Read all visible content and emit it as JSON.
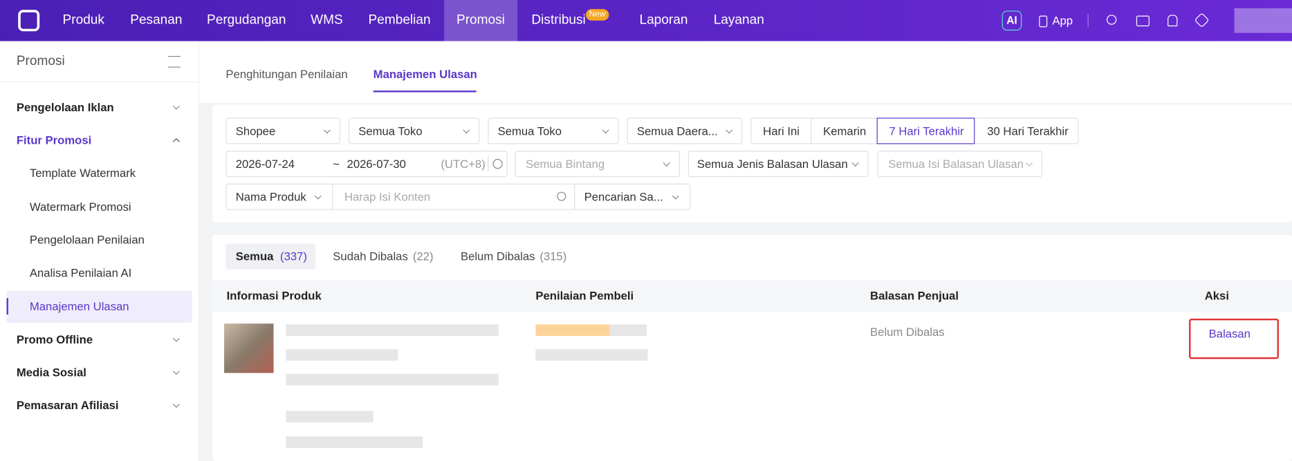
{
  "nav": {
    "items": [
      "Produk",
      "Pesanan",
      "Pergudangan",
      "WMS",
      "Pembelian",
      "Promosi",
      "Distribusi",
      "Laporan",
      "Layanan"
    ],
    "badge": "New",
    "ai": "AI",
    "app": "App"
  },
  "sidebar": {
    "title": "Promosi",
    "items": [
      "Pengelolaan Iklan",
      "Fitur Promosi",
      "Template Watermark",
      "Watermark Promosi",
      "Pengelolaan Penilaian",
      "Analisa Penilaian AI",
      "Manajemen Ulasan",
      "Promo Offline",
      "Media Sosial",
      "Pemasaran Afiliasi"
    ]
  },
  "tabs": [
    "Penghitungan Penilaian",
    "Manajemen Ulasan"
  ],
  "filters": {
    "platform": "Shopee",
    "store1": "Semua Toko",
    "store2": "Semua Toko",
    "region": "Semua Daera...",
    "ranges": [
      "Hari Ini",
      "Kemarin",
      "7 Hari Terakhir",
      "30 Hari Terakhir"
    ],
    "date_start": "2026-07-24",
    "date_sep": "~",
    "date_end": "2026-07-30",
    "timezone": "(UTC+8)",
    "stars": "Semua Bintang",
    "reply_type": "Semua Jenis Balasan Ulasan",
    "reply_content": "Semua Isi Balasan Ulasan",
    "search_field": "Nama Produk",
    "search_placeholder": "Harap Isi Konten",
    "search_mode": "Pencarian Sa..."
  },
  "status_tabs": [
    {
      "label": "Semua",
      "count": "(337)"
    },
    {
      "label": "Sudah Dibalas",
      "count": "(22)"
    },
    {
      "label": "Belum Dibalas",
      "count": "(315)"
    }
  ],
  "table": {
    "headers": [
      "Informasi Produk",
      "Penilaian Pembeli",
      "Balasan Penjual",
      "Aksi"
    ],
    "rows": [
      {
        "status": "Belum Dibalas",
        "action": "Balasan"
      }
    ]
  }
}
